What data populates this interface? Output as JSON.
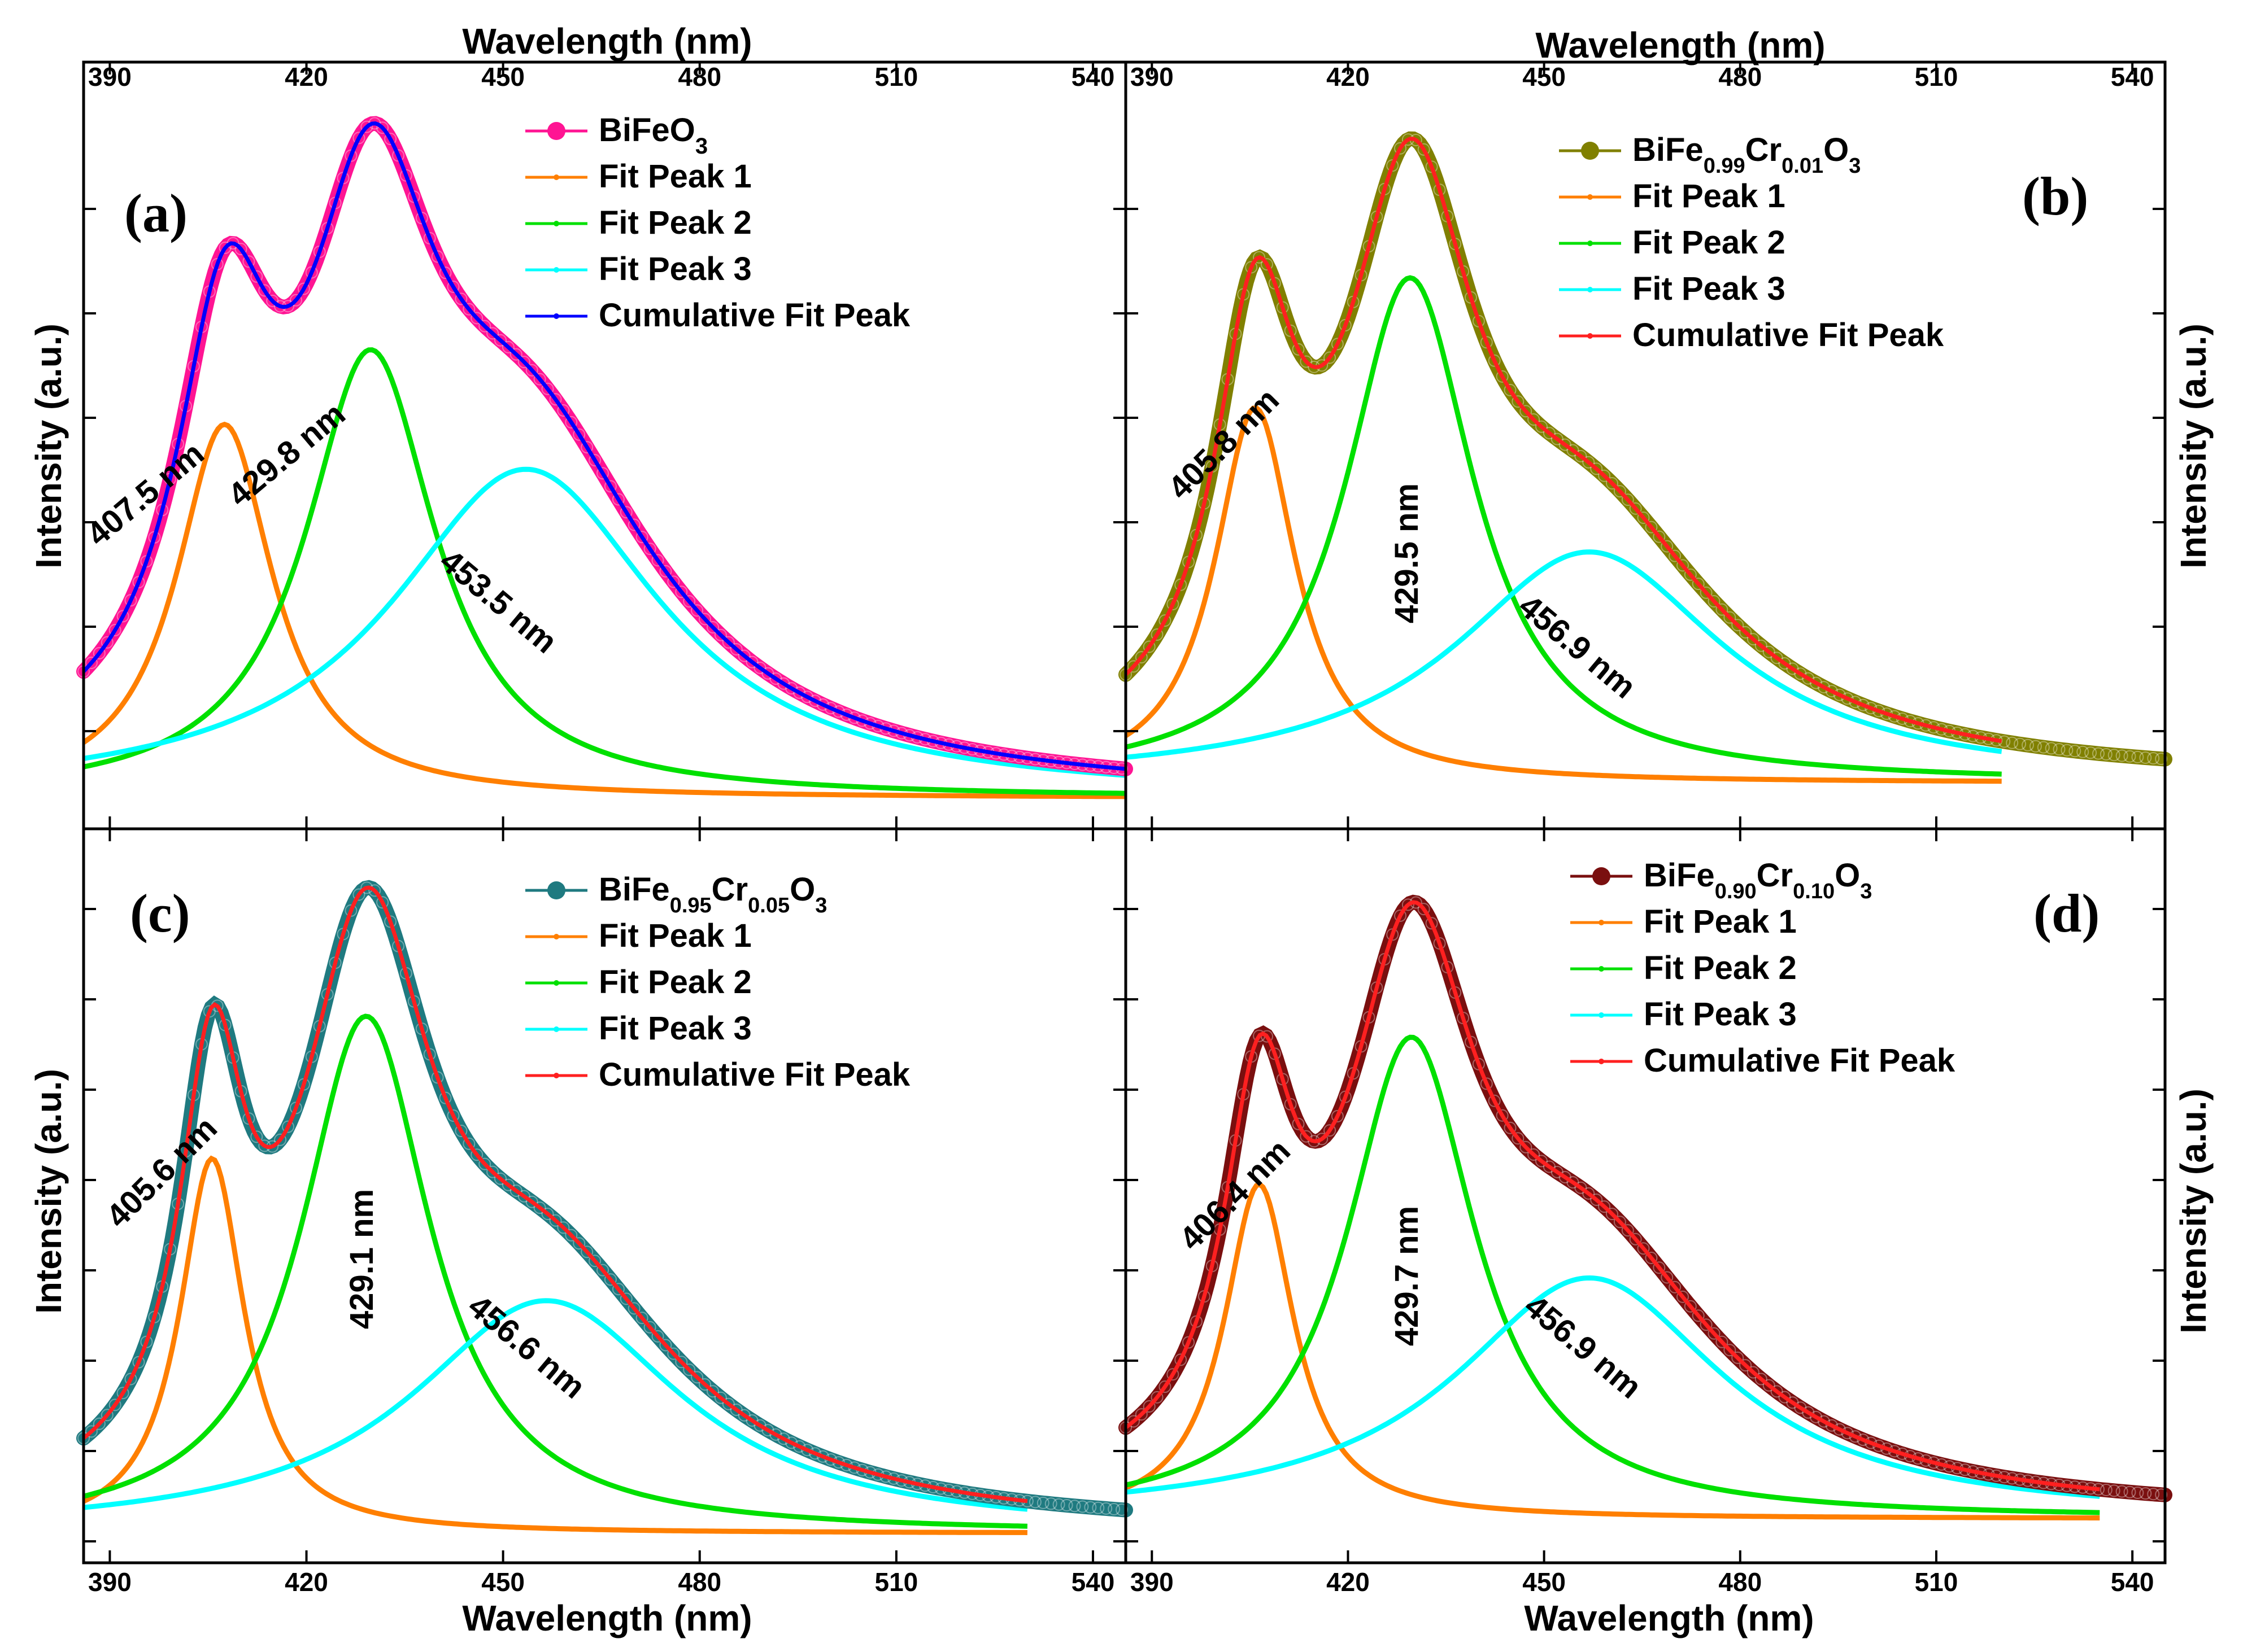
{
  "chart_data": {
    "type": "line",
    "layout": "2x2 panels",
    "axes": {
      "top_xlabel": "Wavelength (nm)",
      "bottom_xlabel": "Wavelength (nm)",
      "ylabel": "Intensity (a.u.)",
      "xlim": [
        386,
        545
      ],
      "xticks": [
        "390",
        "420",
        "450",
        "480",
        "510",
        "540"
      ],
      "y_scale": "arbitrary units (normalized 0-1)",
      "ylim": [
        0,
        1.0
      ]
    },
    "panels": [
      {
        "label": "(a)",
        "sample": "BiFeO3",
        "legend": [
          {
            "name": "BiFeO",
            "sub": "3",
            "role": "data",
            "color": "#ff1493"
          },
          {
            "name": "Fit Peak 1",
            "role": "fit",
            "color": "#ff7f00"
          },
          {
            "name": "Fit Peak 2",
            "role": "fit",
            "color": "#00e000"
          },
          {
            "name": "Fit Peak 3",
            "role": "fit",
            "color": "#00ffff"
          },
          {
            "name": "Cumulative Fit Peak",
            "role": "fit",
            "color": "#0000ff"
          }
        ],
        "data_color": "#ff1493",
        "cumulative_color": "#0000ff",
        "baseline": 0.0,
        "fit_end": 545,
        "peaks": [
          {
            "center": 407.5,
            "amplitude": 0.5,
            "width": 9.0,
            "annotation": "407.5 nm"
          },
          {
            "center": 429.8,
            "amplitude": 0.6,
            "width": 12.0,
            "annotation": "429.8 nm"
          },
          {
            "center": 453.5,
            "amplitude": 0.44,
            "width": 25.0,
            "annotation": "453.5 nm"
          }
        ],
        "annotations": [
          "407.5 nm",
          "429.8 nm",
          "453.5 nm"
        ]
      },
      {
        "label": "(b)",
        "sample": "BiFe0.99Cr0.01O3",
        "legend": [
          {
            "name": "BiFe",
            "parts": [
              "0.99",
              "Cr",
              "0.01",
              "O",
              "3"
            ],
            "role": "data",
            "color": "#808000"
          },
          {
            "name": "Fit Peak 1",
            "role": "fit",
            "color": "#ff7f00"
          },
          {
            "name": "Fit Peak 2",
            "role": "fit",
            "color": "#00e000"
          },
          {
            "name": "Fit Peak 3",
            "role": "fit",
            "color": "#00ffff"
          },
          {
            "name": "Cumulative Fit Peak",
            "role": "fit",
            "color": "#ff2020"
          }
        ],
        "data_color": "#808000",
        "cumulative_color": "#ff2020",
        "baseline": 0.0,
        "fit_end": 520,
        "peaks": [
          {
            "center": 405.8,
            "amplitude": 0.52,
            "width": 7.5,
            "annotation": "405.8 nm"
          },
          {
            "center": 429.5,
            "amplitude": 0.7,
            "width": 12.0,
            "annotation": "429.5 nm"
          },
          {
            "center": 456.9,
            "amplitude": 0.32,
            "width": 25.0,
            "annotation": "456.9 nm"
          }
        ],
        "annotations": [
          "405.8 nm",
          "429.5 nm",
          "456.9 nm"
        ]
      },
      {
        "label": "(c)",
        "sample": "BiFe0.95Cr0.05O3",
        "legend": [
          {
            "name": "BiFe",
            "parts": [
              "0.95",
              "Cr",
              "0.05",
              "O",
              "3"
            ],
            "role": "data",
            "color": "#1f7a80"
          },
          {
            "name": "Fit Peak 1",
            "role": "fit",
            "color": "#ff7f00"
          },
          {
            "name": "Fit Peak 2",
            "role": "fit",
            "color": "#00e000"
          },
          {
            "name": "Fit Peak 3",
            "role": "fit",
            "color": "#00ffff"
          },
          {
            "name": "Cumulative Fit Peak",
            "role": "fit",
            "color": "#ff2020"
          }
        ],
        "data_color": "#1f7a80",
        "cumulative_color": "#ff2020",
        "baseline": 0.0,
        "fit_end": 530,
        "peaks": [
          {
            "center": 405.6,
            "amplitude": 0.58,
            "width": 6.0,
            "annotation": "405.6 nm"
          },
          {
            "center": 429.1,
            "amplitude": 0.8,
            "width": 12.0,
            "annotation": "429.1 nm"
          },
          {
            "center": 456.6,
            "amplitude": 0.36,
            "width": 25.0,
            "annotation": "456.6 nm"
          }
        ],
        "annotations": [
          "405.6 nm",
          "429.1 nm",
          "456.6 nm"
        ]
      },
      {
        "label": "(d)",
        "sample": "BiFe0.90Cr0.10O3",
        "legend": [
          {
            "name": "BiFe",
            "parts": [
              "0.90",
              "Cr",
              "0.10",
              "O",
              "3"
            ],
            "role": "data",
            "color": "#7a0f0f"
          },
          {
            "name": "Fit Peak 1",
            "role": "fit",
            "color": "#ff7f00"
          },
          {
            "name": "Fit Peak 2",
            "role": "fit",
            "color": "#00e000"
          },
          {
            "name": "Fit Peak 3",
            "role": "fit",
            "color": "#00ffff"
          },
          {
            "name": "Cumulative Fit Peak",
            "role": "fit",
            "color": "#ff2020"
          }
        ],
        "data_color": "#7a0f0f",
        "cumulative_color": "#ff2020",
        "baseline": 0.0,
        "fit_end": 535,
        "peaks": [
          {
            "center": 406.4,
            "amplitude": 0.5,
            "width": 6.5,
            "annotation": "406.4 nm"
          },
          {
            "center": 429.7,
            "amplitude": 0.72,
            "width": 12.0,
            "annotation": "429.7 nm"
          },
          {
            "center": 456.9,
            "amplitude": 0.36,
            "width": 25.0,
            "annotation": "456.9 nm"
          }
        ],
        "annotations": [
          "406.4 nm",
          "429.7 nm",
          "456.9 nm"
        ]
      }
    ]
  }
}
